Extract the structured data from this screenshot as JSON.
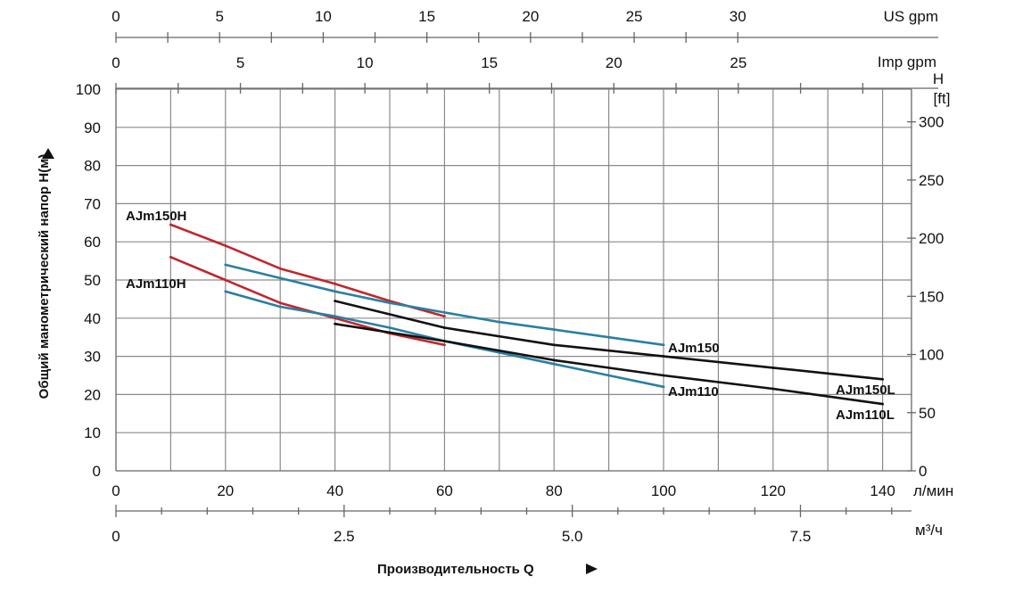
{
  "chart_data": {
    "type": "line",
    "xlabel": "Производительность Q",
    "ylabel": "Общий манометрический напор H(м)",
    "x_unit": "л/мин",
    "xlim": [
      0,
      145
    ],
    "ylim": [
      0,
      100
    ],
    "grid": true,
    "x_ticks": [
      0,
      20,
      40,
      60,
      80,
      100,
      120,
      140
    ],
    "y_ticks": [
      0,
      10,
      20,
      30,
      40,
      50,
      60,
      70,
      80,
      90,
      100
    ],
    "ft_axis": {
      "title_line1": "H",
      "title_line2": "[ft]",
      "ticks": [
        0,
        50,
        100,
        150,
        200,
        250,
        300
      ]
    },
    "us_gpm_axis": {
      "label": "US gpm",
      "ticks": [
        0,
        5,
        10,
        15,
        20,
        25,
        30
      ]
    },
    "imp_gpm_axis": {
      "label": "Imp gpm",
      "ticks": [
        0,
        5,
        10,
        15,
        20,
        25
      ]
    },
    "m3h_axis": {
      "label": "м³/ч",
      "ticks": [
        "0",
        "2.5",
        "5.0",
        "7.5"
      ]
    },
    "series": [
      {
        "name": "AJm150H",
        "color": "#c0272d",
        "points": [
          [
            10,
            64.5
          ],
          [
            20,
            59
          ],
          [
            30,
            53
          ],
          [
            40,
            49
          ],
          [
            50,
            44.5
          ],
          [
            60,
            40.5
          ]
        ]
      },
      {
        "name": "AJm110H",
        "color": "#c0272d",
        "points": [
          [
            10,
            56
          ],
          [
            20,
            50
          ],
          [
            30,
            44
          ],
          [
            40,
            40
          ],
          [
            50,
            36
          ],
          [
            60,
            33
          ]
        ]
      },
      {
        "name": "AJm150",
        "color": "#2a7fa3",
        "points": [
          [
            20,
            54
          ],
          [
            30,
            50.5
          ],
          [
            40,
            47
          ],
          [
            50,
            44
          ],
          [
            60,
            41.5
          ],
          [
            70,
            39
          ],
          [
            80,
            37
          ],
          [
            90,
            35
          ],
          [
            100,
            33
          ]
        ]
      },
      {
        "name": "AJm110",
        "color": "#2a7fa3",
        "points": [
          [
            20,
            47
          ],
          [
            30,
            43
          ],
          [
            40,
            40.5
          ],
          [
            50,
            37.5
          ],
          [
            60,
            34
          ],
          [
            70,
            31
          ],
          [
            80,
            28
          ],
          [
            90,
            25
          ],
          [
            100,
            22
          ]
        ]
      },
      {
        "name": "AJm150L",
        "color": "#111111",
        "points": [
          [
            40,
            44.5
          ],
          [
            60,
            37.5
          ],
          [
            80,
            33
          ],
          [
            100,
            30
          ],
          [
            120,
            27
          ],
          [
            140,
            24
          ]
        ]
      },
      {
        "name": "AJm110L",
        "color": "#111111",
        "points": [
          [
            40,
            38.5
          ],
          [
            60,
            34
          ],
          [
            80,
            29
          ],
          [
            100,
            25
          ],
          [
            120,
            21.5
          ],
          [
            140,
            17.5
          ]
        ]
      }
    ]
  }
}
